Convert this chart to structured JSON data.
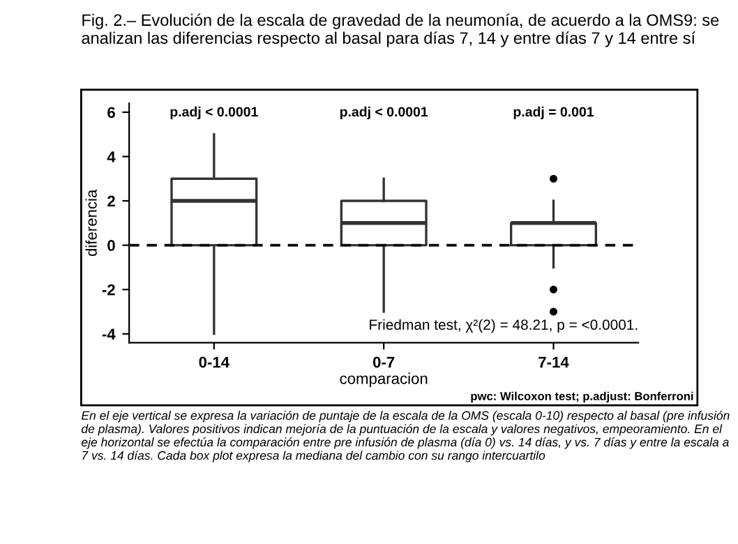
{
  "chart_data": {
    "type": "box",
    "title": "Fig. 2.– Evolución de la escala de gravedad de la neumonía, de acuerdo a la OMS9: se analizan las diferencias respecto al basal para días 7, 14 y entre días 7 y 14 entre sí",
    "xlabel": "comparacion",
    "ylabel": "diferencia",
    "categories": [
      "0-14",
      "0-7",
      "7-14"
    ],
    "boxes": [
      {
        "low": -4,
        "q1": 0,
        "median": 2,
        "q3": 3,
        "high": 5
      },
      {
        "low": -3,
        "q1": 0,
        "median": 1,
        "q3": 2,
        "high": 3
      },
      {
        "low": -1,
        "q1": 0,
        "median": 1,
        "q3": 1,
        "high": 2,
        "outliers": [
          3,
          -2,
          -3
        ]
      }
    ],
    "ylim": [
      -4.4,
      6.4
    ],
    "yticks": [
      -4,
      -2,
      0,
      2,
      4,
      6
    ],
    "ref_lines": [
      {
        "axis": "y",
        "value": 0,
        "line_style": "dashed",
        "color": "#000000"
      }
    ],
    "grid": false,
    "annotations": [
      "p.adj < 0.0001",
      "p.adj < 0.0001",
      "p.adj = 0.001",
      "Friedman test, χ²(2) = 48.21, p = <0.0001.",
      "pwc: Wilcoxon test; p.adjust: Bonferroni",
      "En el eje vertical se expresa la variación de puntaje de la escala de la OMS (escala 0-10) respecto al basal (pre infusión de plasma). Valores positivos indican mejoría de la puntuación de la escala y valores negativos, empeoramiento. En el eje horizontal se efectúa la comparación entre pre infusión de plasma (día 0) vs. 14 días, y vs. 7 días y entre la escala a 7 vs. 14 días. Cada box plot expresa la mediana del cambio con su rango intercuartilo"
    ]
  }
}
